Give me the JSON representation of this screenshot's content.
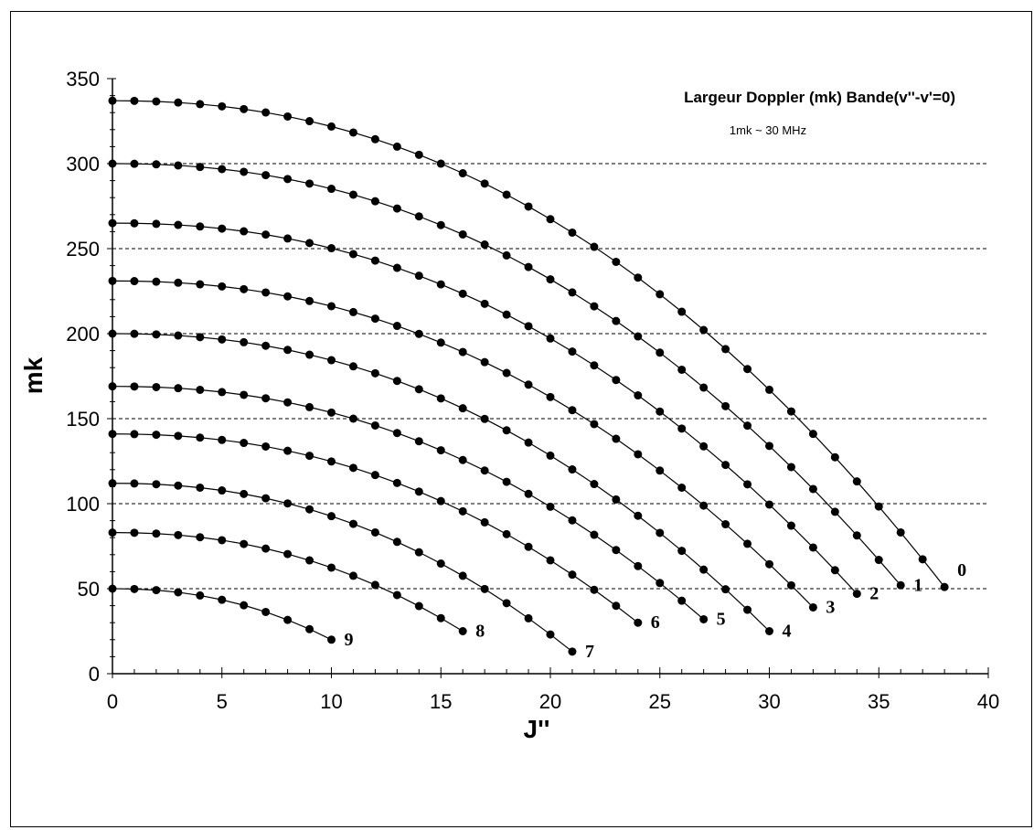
{
  "chart_data": {
    "type": "line",
    "title": "Largeur Doppler (mk) Bande(v''-v'=0)",
    "subtitle": "1mk ~ 30 MHz",
    "xlabel": "J''",
    "ylabel": "mk",
    "xlim": [
      0,
      40
    ],
    "ylim": [
      0,
      350
    ],
    "xticks": [
      "0",
      "5",
      "10",
      "15",
      "20",
      "25",
      "30",
      "35",
      "40"
    ],
    "yticks": [
      "0",
      "50",
      "100",
      "150",
      "200",
      "250",
      "300",
      "350"
    ],
    "gridlines_y": [
      50,
      100,
      150,
      200,
      250,
      300
    ],
    "grid": "horizontal dashed",
    "marker": "filled circle",
    "line_color": "#000000",
    "series": [
      {
        "name": "0",
        "Jmax": 38,
        "y0": 337,
        "yend": 51
      },
      {
        "name": "1",
        "Jmax": 36,
        "y0": 300,
        "yend": 52
      },
      {
        "name": "2",
        "Jmax": 34,
        "y0": 265,
        "yend": 47
      },
      {
        "name": "3",
        "Jmax": 32,
        "y0": 231,
        "yend": 39
      },
      {
        "name": "4",
        "Jmax": 30,
        "y0": 200,
        "yend": 25
      },
      {
        "name": "5",
        "Jmax": 27,
        "y0": 169,
        "yend": 32
      },
      {
        "name": "6",
        "Jmax": 24,
        "y0": 141,
        "yend": 30
      },
      {
        "name": "7",
        "Jmax": 21,
        "y0": 112,
        "yend": 13
      },
      {
        "name": "8",
        "Jmax": 16,
        "y0": 83,
        "yend": 25
      },
      {
        "name": "9",
        "Jmax": 10,
        "y0": 50,
        "yend": 20
      }
    ]
  }
}
